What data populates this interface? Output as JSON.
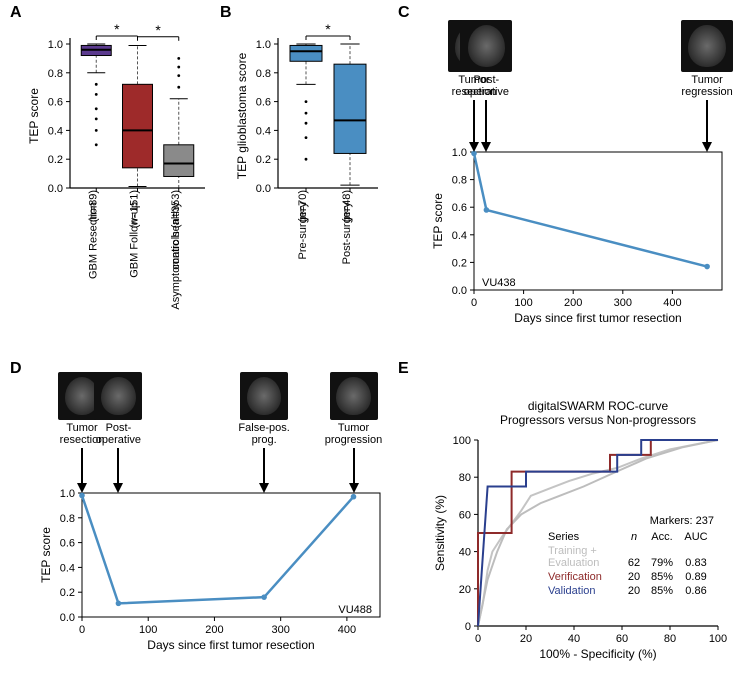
{
  "panelA": {
    "type": "boxplot",
    "y_label": "TEP score",
    "ylim": [
      0,
      1
    ],
    "ytick_step": 0.2,
    "categories": [
      {
        "label": "GBM Resection\n(n=89)",
        "color": "#5b3a8e",
        "q1": 0.92,
        "med": 0.96,
        "q3": 0.99,
        "wlo": 0.8,
        "whi": 1.0,
        "outliers": [
          0.72,
          0.65,
          0.55,
          0.48,
          0.4,
          0.3
        ]
      },
      {
        "label": "GBM Follow-up\n(n=151)",
        "color": "#9e2a2a",
        "q1": 0.14,
        "med": 0.4,
        "q3": 0.72,
        "wlo": 0.01,
        "whi": 0.99,
        "outliers": []
      },
      {
        "label": "Asymptomatic healthy\ncontrols (n=353)",
        "color": "#8a8a8a",
        "q1": 0.08,
        "med": 0.17,
        "q3": 0.3,
        "wlo": 0.0,
        "whi": 0.62,
        "outliers": [
          0.7,
          0.78,
          0.84,
          0.9
        ]
      }
    ],
    "sig": [
      {
        "from": 0,
        "to": 1,
        "label": "*",
        "y": 1.05
      },
      {
        "from": 1,
        "to": 2,
        "label": "*",
        "y": 1.03
      }
    ]
  },
  "panelB": {
    "type": "boxplot",
    "y_label": "TEP glioblastoma score",
    "ylim": [
      0,
      1
    ],
    "ytick_step": 0.2,
    "categories": [
      {
        "label": "Pre-surgery\n(n=70)",
        "color": "#4a8ec2",
        "q1": 0.88,
        "med": 0.95,
        "q3": 0.99,
        "wlo": 0.72,
        "whi": 1.0,
        "outliers": [
          0.6,
          0.52,
          0.45,
          0.35,
          0.2
        ]
      },
      {
        "label": "Post-surgery\n(n=48)",
        "color": "#4a8ec2",
        "q1": 0.24,
        "med": 0.47,
        "q3": 0.86,
        "wlo": 0.02,
        "whi": 1.0,
        "outliers": []
      }
    ],
    "sig": [
      {
        "from": 0,
        "to": 1,
        "label": "*",
        "y": 1.05
      }
    ]
  },
  "panelC": {
    "type": "line",
    "case": "VU438",
    "x_label": "Days since first tumor resection",
    "y_label": "TEP score",
    "xlim": [
      0,
      500
    ],
    "xticks": [
      0,
      100,
      200,
      300,
      400
    ],
    "ylim": [
      0,
      1
    ],
    "ytick_step": 0.2,
    "line_color": "#4a8ec2",
    "points": [
      {
        "x": 0,
        "y": 0.99
      },
      {
        "x": 25,
        "y": 0.58
      },
      {
        "x": 470,
        "y": 0.17
      }
    ],
    "events": [
      {
        "x": 0,
        "label": "Tumor\nresection"
      },
      {
        "x": 25,
        "label": "Post-\noperative"
      },
      {
        "x": 470,
        "label": "Tumor\nregression"
      }
    ]
  },
  "panelD": {
    "type": "line",
    "case": "VU488",
    "x_label": "Days since first tumor resection",
    "y_label": "TEP score",
    "xlim": [
      0,
      450
    ],
    "xticks": [
      0,
      100,
      200,
      300,
      400
    ],
    "ylim": [
      0,
      1
    ],
    "ytick_step": 0.2,
    "line_color": "#4a8ec2",
    "points": [
      {
        "x": 0,
        "y": 0.98
      },
      {
        "x": 55,
        "y": 0.11
      },
      {
        "x": 275,
        "y": 0.16
      },
      {
        "x": 410,
        "y": 0.97
      }
    ],
    "events": [
      {
        "x": 0,
        "label": "Tumor\nresection"
      },
      {
        "x": 55,
        "label": "Post-\noperative"
      },
      {
        "x": 275,
        "label": "False-pos.\nprog."
      },
      {
        "x": 410,
        "label": "Tumor\nprogression"
      }
    ]
  },
  "panelE": {
    "type": "roc",
    "title1": "digitalSWARM ROC-curve",
    "title2": "Progressors versus Non-progressors",
    "x_label": "100% - Specificity (%)",
    "y_label": "Sensitivity (%)",
    "xlim": [
      0,
      100
    ],
    "xticks": [
      0,
      20,
      40,
      60,
      80,
      100
    ],
    "ylim": [
      0,
      100
    ],
    "yticks": [
      0,
      20,
      40,
      60,
      80,
      100
    ],
    "markers_text": "Markers: 237",
    "table": {
      "headers": [
        "Series",
        "n",
        "Acc.",
        "AUC"
      ],
      "rows": [
        {
          "c": "#bdbdbd",
          "series": "Training +\nEvaluation",
          "n": "62",
          "acc": "79%",
          "auc": "0.83"
        },
        {
          "c": "#8e2a2a",
          "series": "Verification",
          "n": "20",
          "acc": "85%",
          "auc": "0.89"
        },
        {
          "c": "#2a3f8e",
          "series": "Validation",
          "n": "20",
          "acc": "85%",
          "auc": "0.86"
        }
      ]
    },
    "curves": [
      {
        "color": "#c4c4c4",
        "pts": [
          [
            0,
            0
          ],
          [
            2,
            12
          ],
          [
            4,
            30
          ],
          [
            6,
            40
          ],
          [
            10,
            48
          ],
          [
            14,
            55
          ],
          [
            18,
            62
          ],
          [
            22,
            70
          ],
          [
            30,
            74
          ],
          [
            38,
            78
          ],
          [
            48,
            82
          ],
          [
            58,
            85
          ],
          [
            68,
            90
          ],
          [
            80,
            95
          ],
          [
            100,
            100
          ]
        ]
      },
      {
        "color": "#bdbdbd",
        "pts": [
          [
            0,
            0
          ],
          [
            4,
            25
          ],
          [
            8,
            40
          ],
          [
            12,
            52
          ],
          [
            18,
            60
          ],
          [
            26,
            66
          ],
          [
            34,
            70
          ],
          [
            44,
            75
          ],
          [
            56,
            82
          ],
          [
            70,
            90
          ],
          [
            85,
            96
          ],
          [
            100,
            100
          ]
        ]
      },
      {
        "color": "#8e2a2a",
        "pts": [
          [
            0,
            0
          ],
          [
            0,
            50
          ],
          [
            14,
            50
          ],
          [
            14,
            83
          ],
          [
            55,
            83
          ],
          [
            55,
            92
          ],
          [
            72,
            92
          ],
          [
            72,
            100
          ],
          [
            100,
            100
          ]
        ]
      },
      {
        "color": "#2a3f8e",
        "pts": [
          [
            0,
            0
          ],
          [
            4,
            75
          ],
          [
            20,
            75
          ],
          [
            20,
            83
          ],
          [
            58,
            83
          ],
          [
            58,
            92
          ],
          [
            68,
            92
          ],
          [
            68,
            100
          ],
          [
            100,
            100
          ]
        ]
      }
    ]
  },
  "colors": {
    "axis": "#000",
    "background": "#fff"
  }
}
